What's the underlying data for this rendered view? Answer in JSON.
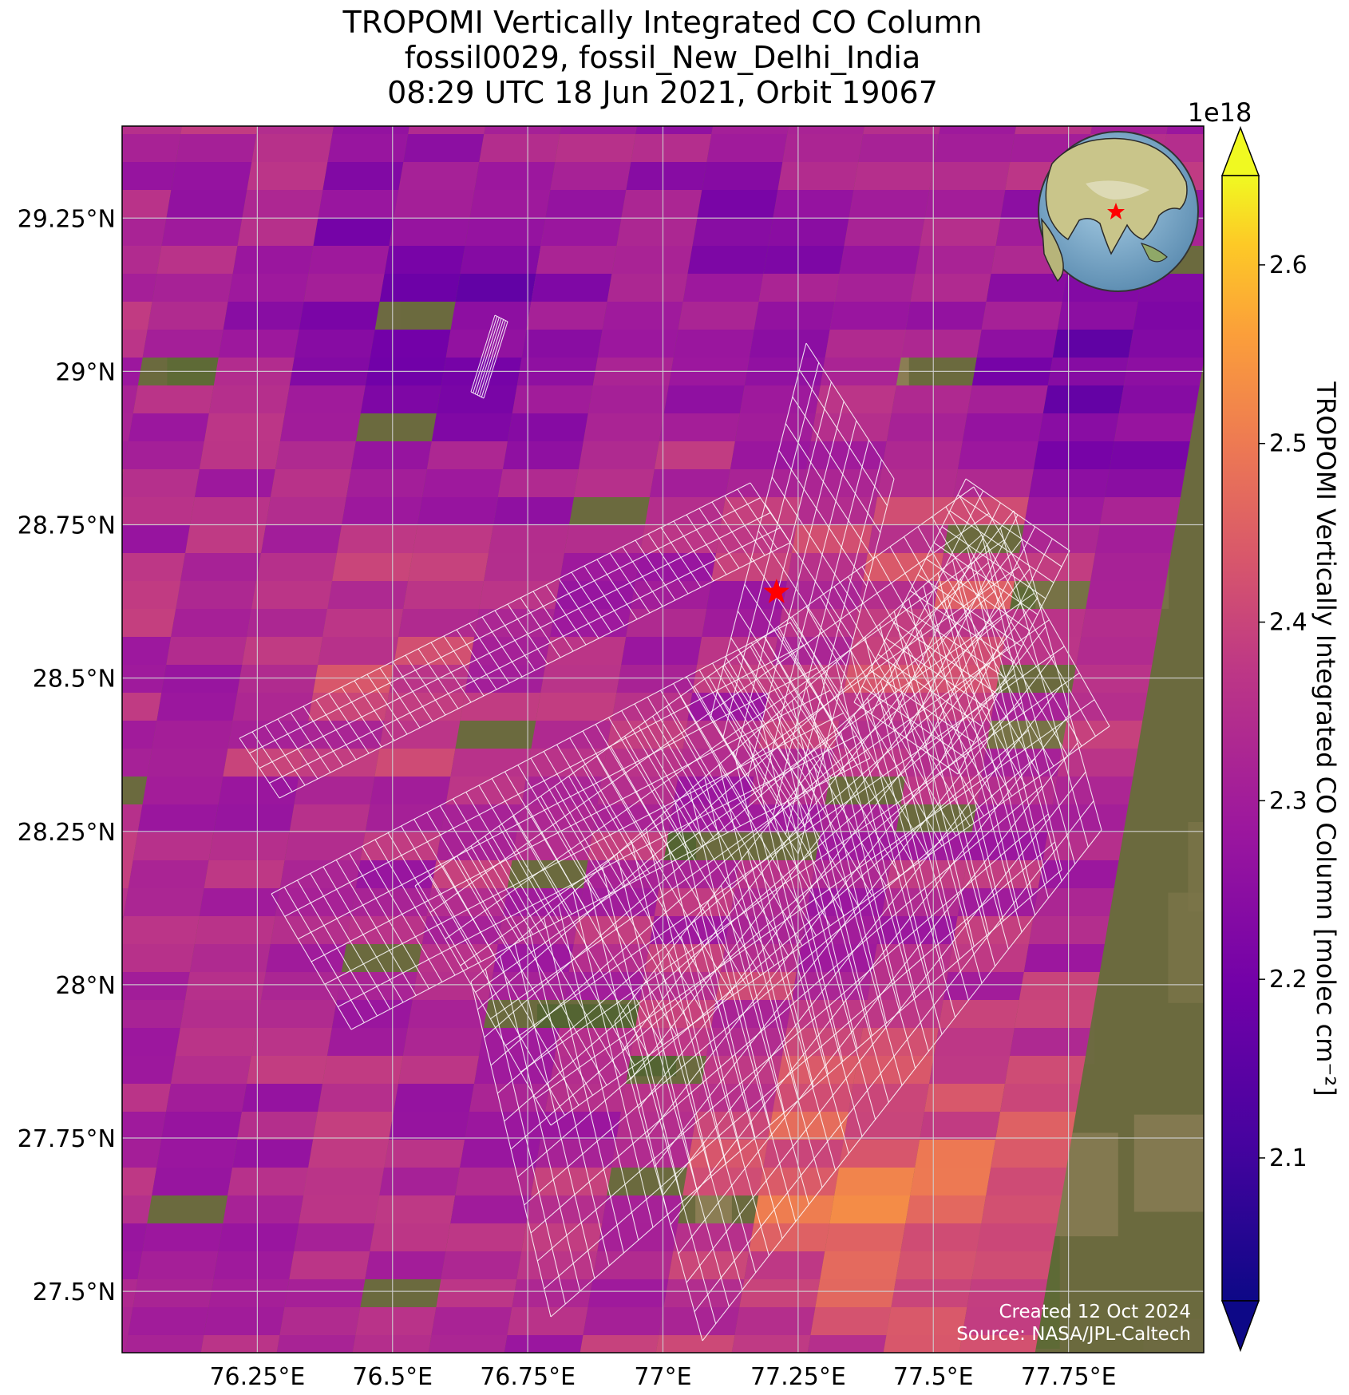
{
  "title": {
    "line1": "TROPOMI Vertically Integrated CO Column",
    "line2": "fossil0029, fossil_New_Delhi_India",
    "line3": "08:29 UTC 18 Jun 2021, Orbit 19067"
  },
  "axes": {
    "lon_range": [
      76.0,
      78.0
    ],
    "lat_range": [
      27.4,
      29.4
    ],
    "lon_ticks": [
      {
        "value": 76.25,
        "label": "76.25°E"
      },
      {
        "value": 76.5,
        "label": "76.5°E"
      },
      {
        "value": 76.75,
        "label": "76.75°E"
      },
      {
        "value": 77.0,
        "label": "77°E"
      },
      {
        "value": 77.25,
        "label": "77.25°E"
      },
      {
        "value": 77.5,
        "label": "77.5°E"
      },
      {
        "value": 77.75,
        "label": "77.75°E"
      }
    ],
    "lat_ticks": [
      {
        "value": 29.25,
        "label": "29.25°N"
      },
      {
        "value": 29.0,
        "label": "29°N"
      },
      {
        "value": 28.75,
        "label": "28.75°N"
      },
      {
        "value": 28.5,
        "label": "28.5°N"
      },
      {
        "value": 28.25,
        "label": "28.25°N"
      },
      {
        "value": 28.0,
        "label": "28°N"
      },
      {
        "value": 27.75,
        "label": "27.75°N"
      },
      {
        "value": 27.5,
        "label": "27.5°N"
      }
    ],
    "gridlines": true
  },
  "colorbar": {
    "label": "TROPOMI Vertically Integrated CO Column [molec cm⁻²]",
    "exponent": "1e18",
    "colormap": "plasma",
    "range": [
      2.02,
      2.65
    ],
    "extend": "both",
    "ticks": [
      {
        "value": 2.1,
        "label": "2.1"
      },
      {
        "value": 2.2,
        "label": "2.2"
      },
      {
        "value": 2.3,
        "label": "2.3"
      },
      {
        "value": 2.4,
        "label": "2.4"
      },
      {
        "value": 2.5,
        "label": "2.5"
      },
      {
        "value": 2.6,
        "label": "2.6"
      }
    ]
  },
  "target": {
    "name": "fossil_New_Delhi_India",
    "lon": 77.21,
    "lat": 28.64,
    "marker": "star",
    "color": "#ff0000"
  },
  "credits": {
    "created": "Created 12 Oct 2024",
    "source": "Source: NASA/JPL-Caltech"
  },
  "colors": {
    "plasma_low": "#0d0887",
    "plasma_mid": "#cc4778",
    "plasma_high": "#f0f921",
    "grid": "#d0d0d0",
    "outline": "#ffffff"
  }
}
